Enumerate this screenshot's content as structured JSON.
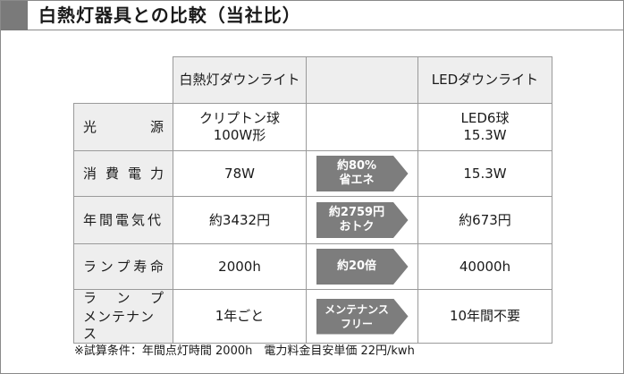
{
  "title": "白熱灯器具との比較（当社比）",
  "headers": {
    "incandescent": "白熱灯ダウンライト",
    "led": "LEDダウンライト"
  },
  "rows": [
    {
      "label": [
        "光",
        "源"
      ],
      "incandescent": [
        "クリプトン球",
        "100W形"
      ],
      "led": [
        "LED6球",
        "15.3W"
      ],
      "mid": []
    },
    {
      "label": [
        "消",
        "費",
        "電",
        "力"
      ],
      "incandescent": [
        "78W"
      ],
      "led": [
        "15.3W"
      ],
      "mid": [
        "約80%",
        "省エネ"
      ]
    },
    {
      "label": [
        "年間電気代"
      ],
      "incandescent": [
        "約3432円"
      ],
      "led": [
        "約673円"
      ],
      "mid": [
        "約2759円",
        "おトク"
      ]
    },
    {
      "label": [
        "ラ",
        "ン",
        "プ",
        "寿",
        "命"
      ],
      "incandescent": [
        "2000h"
      ],
      "led": [
        "40000h"
      ],
      "mid": [
        "約20倍"
      ]
    },
    {
      "label_line1": [
        "ラ",
        "ン",
        "プ"
      ],
      "label_line2": "メンテナンス",
      "incandescent": [
        "1年ごと"
      ],
      "led": [
        "10年間不要"
      ],
      "mid": [
        "メンテナンス",
        "フリー"
      ]
    }
  ],
  "note": "※試算条件：年間点灯時間 2000h　電力料金目安単価 22円/kwh",
  "colors": {
    "header_block": "#7a7a7a",
    "label_bg": "#eeeeee",
    "arrow_bg": "#7d7d7d"
  }
}
